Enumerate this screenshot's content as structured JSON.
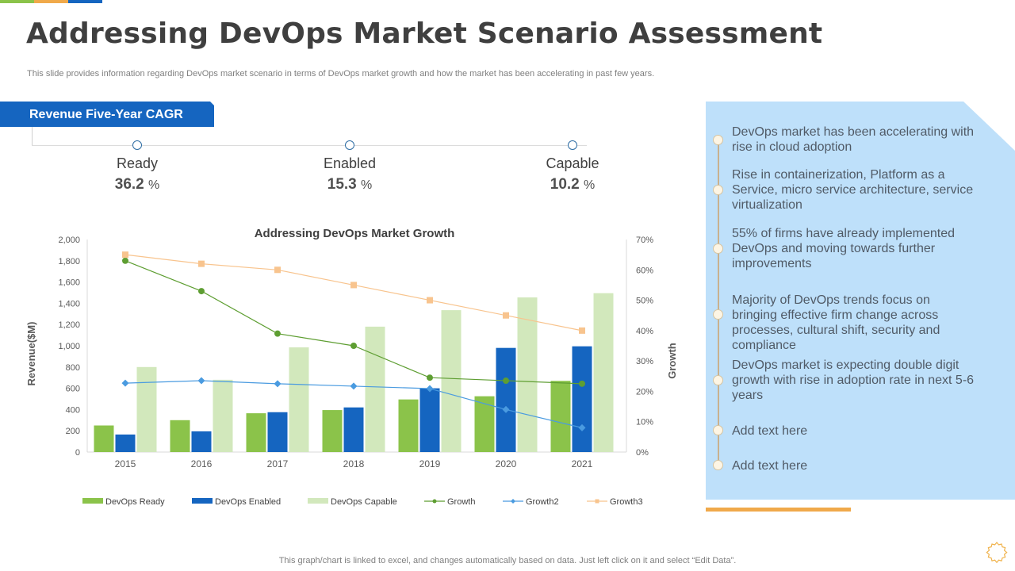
{
  "header": {
    "title": "Addressing DevOps Market Scenario Assessment",
    "subtitle": "This slide provides information regarding DevOps market scenario in terms of DevOps market growth and how the market has been accelerating in past few years.",
    "accent_colors": [
      "#8bc34a",
      "#f0a94a",
      "#1565c0"
    ]
  },
  "cagr": {
    "tab_label": "Revenue Five-Year CAGR",
    "items": [
      {
        "label": "Ready",
        "value": "36.2",
        "unit": "%"
      },
      {
        "label": "Enabled",
        "value": "15.3",
        "unit": "%"
      },
      {
        "label": "Capable",
        "value": "10.2",
        "unit": "%"
      }
    ]
  },
  "chart_data": {
    "type": "bar",
    "title": "Addressing DevOps Market Growth",
    "xlabel": "",
    "ylabel": "Revenue($M)",
    "y2label": "Growth",
    "ylim": [
      0,
      2000
    ],
    "y2lim": [
      0,
      70
    ],
    "yticks": [
      "0",
      "200",
      "400",
      "600",
      "800",
      "1,000",
      "1,200",
      "1,400",
      "1,600",
      "1,800",
      "2,000"
    ],
    "y2ticks": [
      "0%",
      "10%",
      "20%",
      "30%",
      "40%",
      "50%",
      "60%",
      "70%"
    ],
    "categories": [
      "2015",
      "2016",
      "2017",
      "2018",
      "2019",
      "2020",
      "2021"
    ],
    "grid": false,
    "legend_position": "bottom",
    "series": [
      {
        "name": "DevOps Ready",
        "kind": "bar",
        "axis": "left",
        "color": "#8bc34a",
        "values": [
          250,
          300,
          365,
          395,
          495,
          525,
          670
        ]
      },
      {
        "name": "DevOps Enabled",
        "kind": "bar",
        "axis": "left",
        "color": "#1565c0",
        "values": [
          165,
          195,
          375,
          420,
          600,
          980,
          995
        ]
      },
      {
        "name": "DevOps Capable",
        "kind": "bar",
        "axis": "left",
        "color": "#d2e8bc",
        "values": [
          800,
          680,
          985,
          1180,
          1335,
          1455,
          1495
        ]
      },
      {
        "name": "Growth",
        "kind": "line",
        "axis": "right",
        "marker": "circle",
        "color": "#5e9e32",
        "values": [
          63,
          53,
          39,
          35,
          24.5,
          23.5,
          22.5
        ]
      },
      {
        "name": "Growth2",
        "kind": "line",
        "axis": "right",
        "marker": "diamond",
        "color": "#4a9be0",
        "values": [
          22.7,
          23.5,
          22.5,
          21.7,
          20.9,
          14,
          8
        ]
      },
      {
        "name": "Growth3",
        "kind": "line",
        "axis": "right",
        "marker": "square",
        "color": "#f8c48e",
        "values": [
          65,
          62,
          60,
          55,
          50,
          45,
          40
        ]
      }
    ]
  },
  "panel": {
    "bullets": [
      "DevOps market has been accelerating with rise in cloud adoption",
      "Rise in containerization,  Platform as a Service, micro service architecture, service virtualization",
      "55% of firms have already implemented DevOps and moving towards further improvements",
      "Majority of DevOps trends focus on bringing effective firm change across processes, cultural shift, security and compliance",
      "DevOps market is expecting double digit growth with rise in adoption rate in next 5-6 years",
      "Add text here",
      "Add text here"
    ]
  },
  "footer": {
    "note": "This graph/chart is linked to excel,  and changes automatically based on data. Just left click on it and select “Edit Data”."
  },
  "icons": {
    "gear": "gear-icon"
  }
}
